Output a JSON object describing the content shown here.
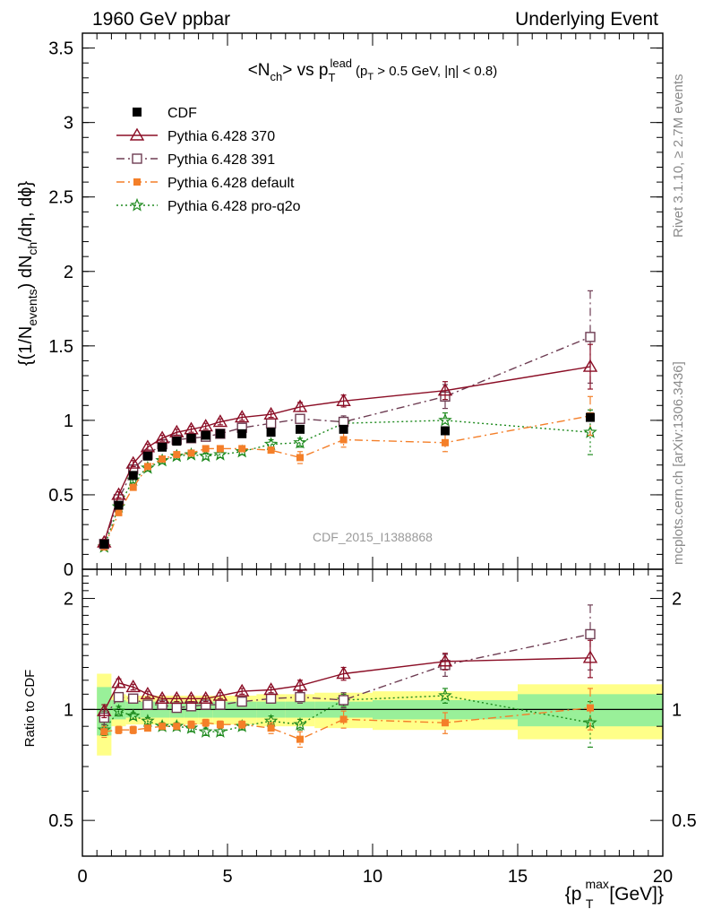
{
  "header": {
    "left": "1960 GeV ppbar",
    "right": "Underlying Event"
  },
  "side_labels": {
    "rivet": "Rivet 3.1.10, ≥ 2.7M events",
    "mcplots": "mcplots.cern.ch [arXiv:1306.3436]"
  },
  "watermark": "CDF_2015_I1388868",
  "chart_data": [
    {
      "type": "scatter",
      "panel": "main",
      "title": {
        "prefix": "<N",
        "sub1": "ch",
        "mid": "> vs p",
        "sub2": "T",
        "sup2": "lead",
        "cut": "(p",
        "cut_sub": "T",
        "cut_rest": " > 0.5 GeV, |η| < 0.8)"
      },
      "ylabel": {
        "a": "{(1/N",
        "a_sub": "events",
        "b": ") dN",
        "b_sub": "ch",
        "c": "/dη, dϕ}"
      },
      "xlim": [
        0,
        20
      ],
      "ylim": [
        0,
        3.6
      ],
      "yticks": [
        0,
        0.5,
        1,
        1.5,
        2,
        2.5,
        3,
        3.5
      ],
      "ytick_labels": [
        "0",
        "0.5",
        "1",
        "1.5",
        "2",
        "2.5",
        "3",
        "3.5"
      ],
      "legend_position": "top-left",
      "series": [
        {
          "name": "CDF",
          "color": "#000000",
          "marker": "filled-square",
          "line": "none",
          "x": [
            0.75,
            1.25,
            1.75,
            2.25,
            2.75,
            3.25,
            3.75,
            4.25,
            4.75,
            5.5,
            6.5,
            7.5,
            9.0,
            12.5,
            17.5
          ],
          "y": [
            0.17,
            0.43,
            0.63,
            0.76,
            0.82,
            0.86,
            0.88,
            0.9,
            0.91,
            0.91,
            0.92,
            0.94,
            0.94,
            0.93,
            1.02
          ],
          "err": [
            0.01,
            0.01,
            0.01,
            0.01,
            0.01,
            0.01,
            0.01,
            0.01,
            0.01,
            0.01,
            0.01,
            0.01,
            0.01,
            0.01,
            0.02
          ]
        },
        {
          "name": "Pythia 6.428 370",
          "color": "#8b0e26",
          "marker": "open-triangle",
          "line": "solid",
          "x": [
            0.75,
            1.25,
            1.75,
            2.25,
            2.75,
            3.25,
            3.75,
            4.25,
            4.75,
            5.5,
            6.5,
            7.5,
            9.0,
            12.5,
            17.5
          ],
          "y": [
            0.18,
            0.5,
            0.71,
            0.82,
            0.88,
            0.92,
            0.94,
            0.96,
            0.99,
            1.02,
            1.04,
            1.09,
            1.13,
            1.2,
            1.36
          ],
          "err": [
            0.01,
            0.02,
            0.02,
            0.02,
            0.02,
            0.02,
            0.02,
            0.02,
            0.02,
            0.02,
            0.02,
            0.03,
            0.04,
            0.06,
            0.15
          ]
        },
        {
          "name": "Pythia 6.428 391",
          "color": "#6e3d53",
          "marker": "open-square",
          "line": "dashdot",
          "x": [
            0.75,
            1.25,
            1.75,
            2.25,
            2.75,
            3.25,
            3.75,
            4.25,
            4.75,
            5.5,
            6.5,
            7.5,
            9.0,
            12.5,
            17.5
          ],
          "y": [
            0.17,
            0.47,
            0.67,
            0.77,
            0.84,
            0.87,
            0.88,
            0.89,
            0.91,
            0.95,
            0.98,
            1.01,
            0.99,
            1.16,
            1.56
          ],
          "err": [
            0.01,
            0.02,
            0.02,
            0.02,
            0.02,
            0.02,
            0.02,
            0.02,
            0.02,
            0.02,
            0.02,
            0.03,
            0.04,
            0.08,
            0.31
          ]
        },
        {
          "name": "Pythia 6.428 default",
          "color": "#f47f29",
          "marker": "filled-square-small",
          "line": "dashdot",
          "x": [
            0.75,
            1.25,
            1.75,
            2.25,
            2.75,
            3.25,
            3.75,
            4.25,
            4.75,
            5.5,
            6.5,
            7.5,
            9.0,
            12.5,
            17.5
          ],
          "y": [
            0.15,
            0.38,
            0.55,
            0.69,
            0.74,
            0.77,
            0.78,
            0.81,
            0.81,
            0.81,
            0.8,
            0.75,
            0.87,
            0.85,
            1.03
          ],
          "err": [
            0.01,
            0.01,
            0.01,
            0.01,
            0.01,
            0.01,
            0.02,
            0.02,
            0.02,
            0.02,
            0.02,
            0.04,
            0.05,
            0.06,
            0.13
          ]
        },
        {
          "name": "Pythia 6.428 pro-q2o",
          "color": "#1e8a1e",
          "marker": "open-star",
          "line": "dotted",
          "x": [
            0.75,
            1.25,
            1.75,
            2.25,
            2.75,
            3.25,
            3.75,
            4.25,
            4.75,
            5.5,
            6.5,
            7.5,
            9.0,
            12.5,
            17.5
          ],
          "y": [
            0.15,
            0.42,
            0.6,
            0.68,
            0.73,
            0.76,
            0.77,
            0.76,
            0.77,
            0.79,
            0.84,
            0.85,
            0.98,
            1.0,
            0.92
          ],
          "err": [
            0.01,
            0.01,
            0.02,
            0.02,
            0.02,
            0.02,
            0.02,
            0.02,
            0.02,
            0.02,
            0.03,
            0.03,
            0.04,
            0.05,
            0.15
          ]
        }
      ]
    },
    {
      "type": "scatter",
      "panel": "ratio",
      "ylabel": "Ratio to CDF",
      "ylog": true,
      "xlim": [
        0,
        20
      ],
      "ylim": [
        0.4,
        2.4
      ],
      "yticks": [
        0.5,
        1,
        2
      ],
      "ytick_labels": [
        "0.5",
        "1",
        "2"
      ],
      "xticks": [
        0,
        5,
        10,
        15,
        20
      ],
      "xtick_labels": [
        "0",
        "5",
        "10",
        "15",
        "20"
      ],
      "xlabel": {
        "a": "{p",
        "sup": "max",
        "sub": "T",
        "b": " [GeV]}"
      },
      "bands": {
        "yellow_color": "#ffff88",
        "green_color": "#99f099",
        "bins": [
          {
            "x0": 0.5,
            "x1": 1.0,
            "g": 0.15,
            "y": 0.25
          },
          {
            "x0": 1.0,
            "x1": 1.5,
            "g": 0.06,
            "y": 0.1
          },
          {
            "x0": 1.5,
            "x1": 2.0,
            "g": 0.05,
            "y": 0.09
          },
          {
            "x0": 2.0,
            "x1": 2.5,
            "g": 0.05,
            "y": 0.09
          },
          {
            "x0": 2.5,
            "x1": 3.0,
            "g": 0.05,
            "y": 0.09
          },
          {
            "x0": 3.0,
            "x1": 3.5,
            "g": 0.05,
            "y": 0.09
          },
          {
            "x0": 3.5,
            "x1": 4.0,
            "g": 0.05,
            "y": 0.09
          },
          {
            "x0": 4.0,
            "x1": 4.5,
            "g": 0.05,
            "y": 0.09
          },
          {
            "x0": 4.5,
            "x1": 5.0,
            "g": 0.05,
            "y": 0.09
          },
          {
            "x0": 5.0,
            "x1": 6.0,
            "g": 0.05,
            "y": 0.09
          },
          {
            "x0": 6.0,
            "x1": 7.0,
            "g": 0.05,
            "y": 0.1
          },
          {
            "x0": 7.0,
            "x1": 8.0,
            "g": 0.05,
            "y": 0.1
          },
          {
            "x0": 8.0,
            "x1": 10.0,
            "g": 0.05,
            "y": 0.11
          },
          {
            "x0": 10.0,
            "x1": 15.0,
            "g": 0.06,
            "y": 0.12
          },
          {
            "x0": 15.0,
            "x1": 20.0,
            "g": 0.1,
            "y": 0.17
          }
        ]
      },
      "series": [
        {
          "name": "Pythia 6.428 370",
          "x": [
            0.75,
            1.25,
            1.75,
            2.25,
            2.75,
            3.25,
            3.75,
            4.25,
            4.75,
            5.5,
            6.5,
            7.5,
            9.0,
            12.5,
            17.5
          ],
          "y": [
            0.99,
            1.18,
            1.15,
            1.1,
            1.07,
            1.07,
            1.07,
            1.07,
            1.09,
            1.12,
            1.13,
            1.16,
            1.25,
            1.35,
            1.38
          ],
          "err": [
            0.04,
            0.03,
            0.02,
            0.02,
            0.02,
            0.02,
            0.02,
            0.02,
            0.02,
            0.02,
            0.02,
            0.04,
            0.05,
            0.07,
            0.16
          ]
        },
        {
          "name": "Pythia 6.428 391",
          "x": [
            0.75,
            1.25,
            1.75,
            2.25,
            2.75,
            3.25,
            3.75,
            4.25,
            4.75,
            5.5,
            6.5,
            7.5,
            9.0,
            12.5,
            17.5
          ],
          "y": [
            0.95,
            1.08,
            1.07,
            1.03,
            1.03,
            1.01,
            1.02,
            1.03,
            1.03,
            1.05,
            1.07,
            1.08,
            1.06,
            1.32,
            1.6
          ],
          "err": [
            0.04,
            0.03,
            0.02,
            0.02,
            0.02,
            0.02,
            0.02,
            0.02,
            0.02,
            0.02,
            0.02,
            0.04,
            0.05,
            0.09,
            0.32
          ]
        },
        {
          "name": "Pythia 6.428 default",
          "x": [
            0.75,
            1.25,
            1.75,
            2.25,
            2.75,
            3.25,
            3.75,
            4.25,
            4.75,
            5.5,
            6.5,
            7.5,
            9.0,
            12.5,
            17.5
          ],
          "y": [
            0.87,
            0.88,
            0.88,
            0.89,
            0.9,
            0.9,
            0.91,
            0.92,
            0.91,
            0.91,
            0.89,
            0.83,
            0.94,
            0.92,
            1.01
          ],
          "err": [
            0.03,
            0.02,
            0.02,
            0.01,
            0.01,
            0.01,
            0.02,
            0.02,
            0.02,
            0.02,
            0.03,
            0.04,
            0.05,
            0.06,
            0.13
          ]
        },
        {
          "name": "Pythia 6.428 pro-q2o",
          "x": [
            0.75,
            1.25,
            1.75,
            2.25,
            2.75,
            3.25,
            3.75,
            4.25,
            4.75,
            5.5,
            6.5,
            7.5,
            9.0,
            12.5,
            17.5
          ],
          "y": [
            0.88,
            0.99,
            0.96,
            0.93,
            0.9,
            0.9,
            0.89,
            0.87,
            0.87,
            0.9,
            0.93,
            0.91,
            1.06,
            1.09,
            0.92
          ],
          "err": [
            0.03,
            0.03,
            0.02,
            0.02,
            0.02,
            0.02,
            0.02,
            0.02,
            0.02,
            0.02,
            0.03,
            0.03,
            0.04,
            0.05,
            0.13
          ]
        }
      ]
    }
  ]
}
